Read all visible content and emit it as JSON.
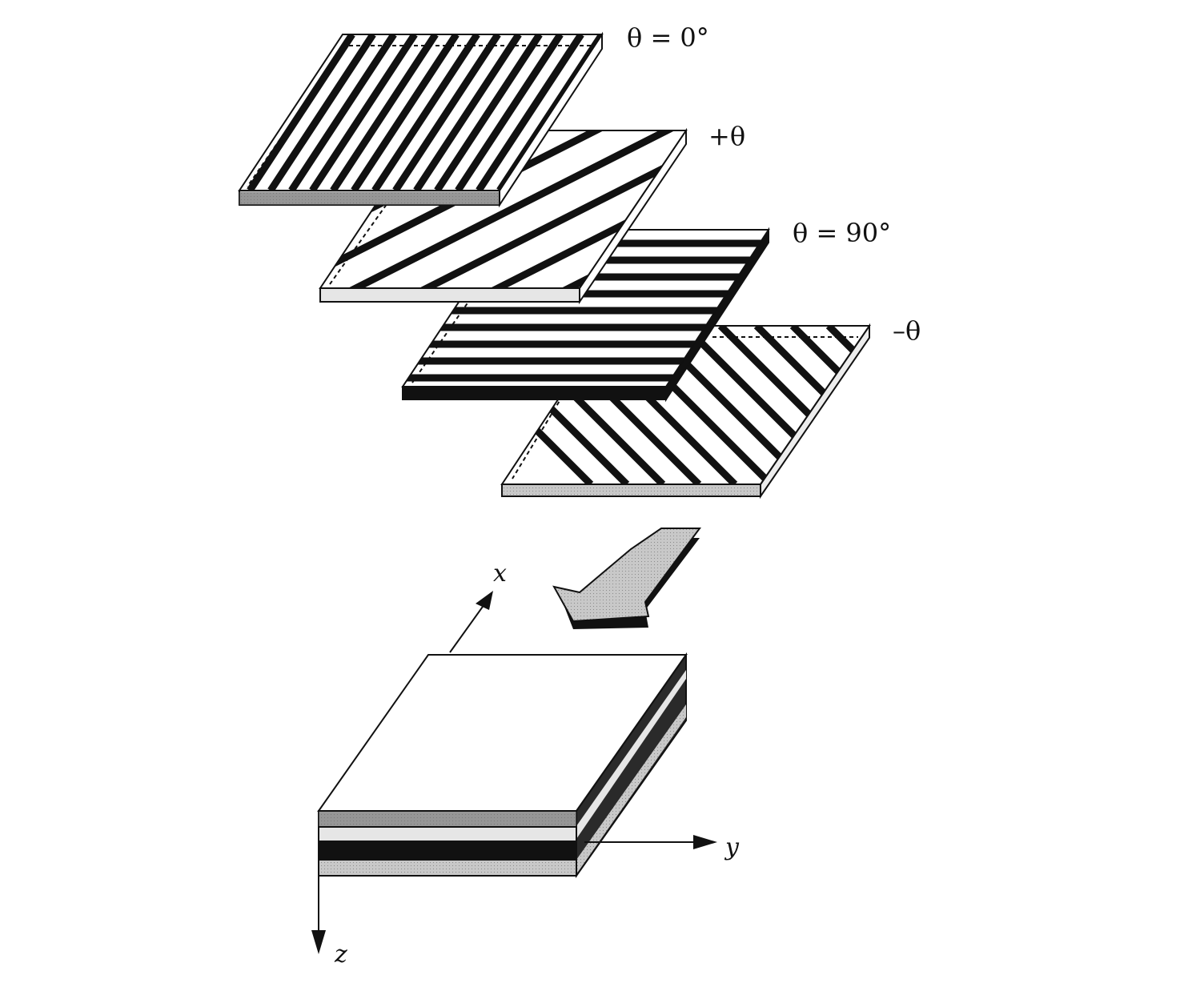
{
  "labels": {
    "ply_0": "θ = 0°",
    "ply_plus": "+θ",
    "ply_90": "θ = 90°",
    "ply_minus": "–θ"
  },
  "axes": {
    "x": "x",
    "y": "y",
    "z": "z"
  },
  "colors": {
    "ink": "#111111",
    "ply_0_edge": "#6e6e6e",
    "ply_plus_edge": "#e6e6e6",
    "ply_90_edge": "#111111",
    "ply_minus_edge": "#b4b4b4",
    "arrow_fill": "#cfcfcf"
  }
}
